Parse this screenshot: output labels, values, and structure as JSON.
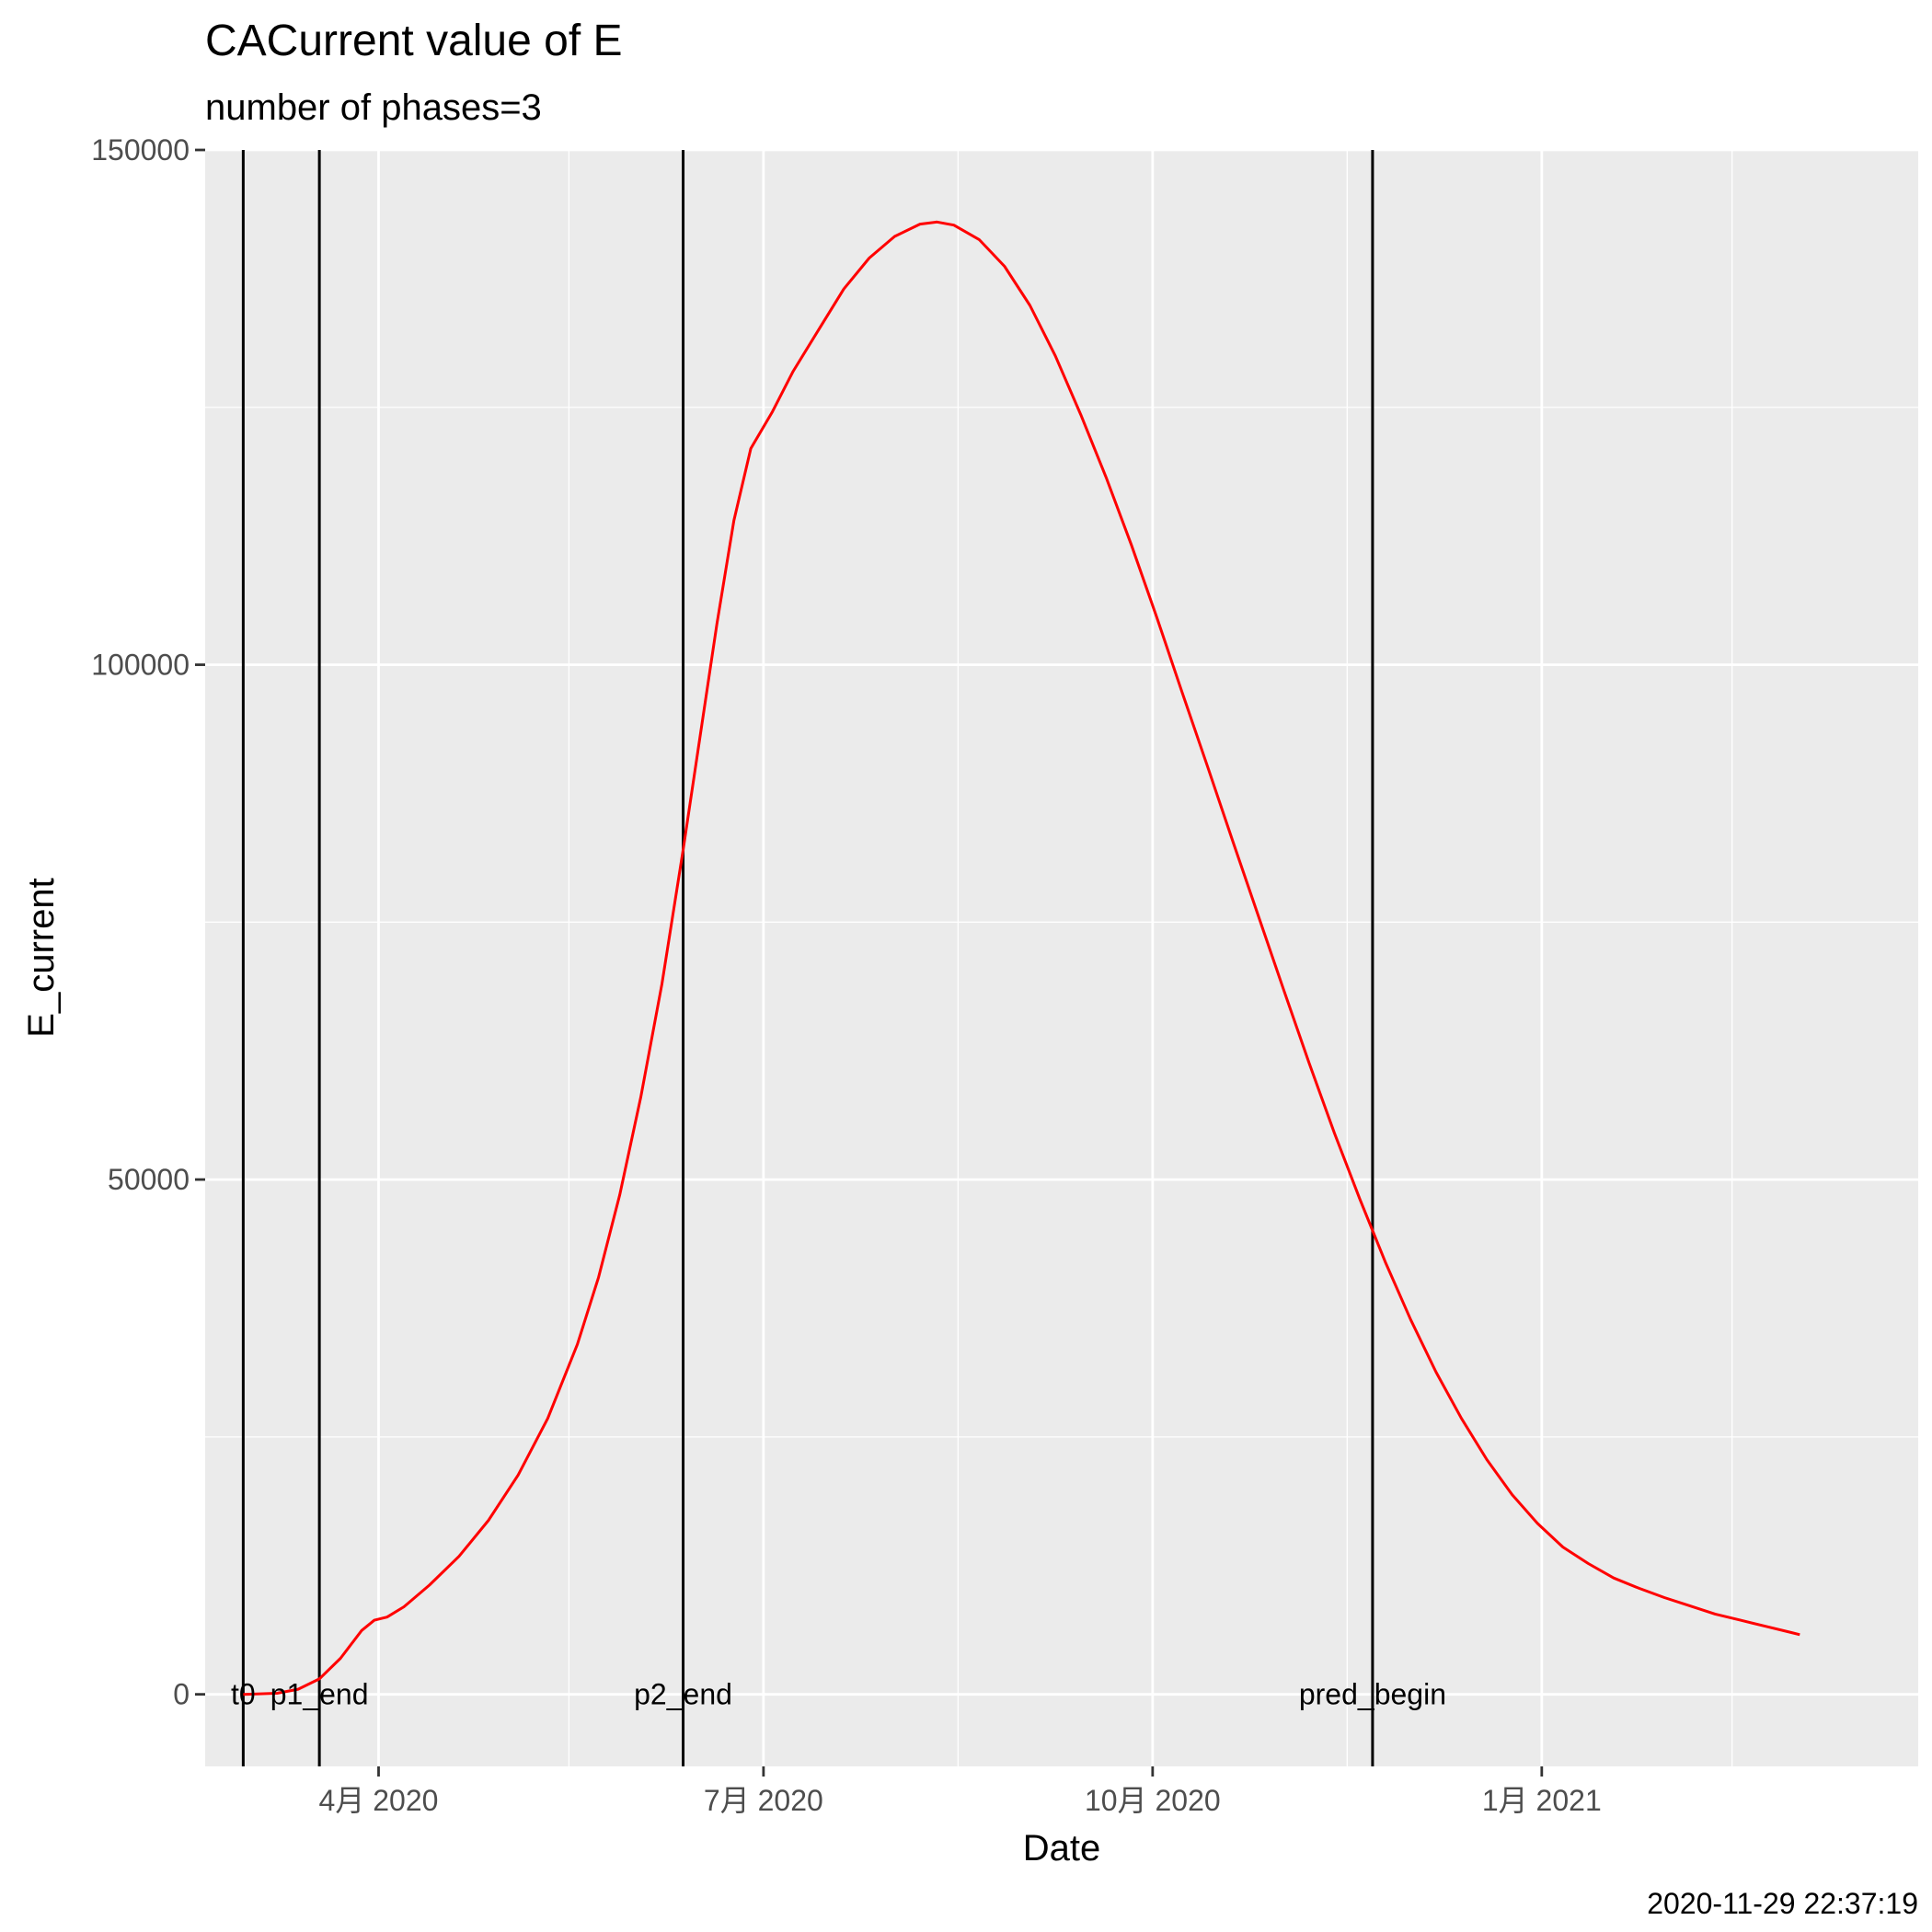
{
  "chart_data": {
    "type": "line",
    "title": "CACurrent value of E",
    "subtitle": "number of phases=3",
    "xlabel": "Date",
    "ylabel": "E_current",
    "caption": "2020-11-29 22:37:19",
    "xlim": [
      "2020-02-20",
      "2021-03-31"
    ],
    "ylim": [
      -7000,
      150000
    ],
    "x_ticks": [
      {
        "date": "2020-04-01",
        "label": "4月 2020"
      },
      {
        "date": "2020-07-01",
        "label": "7月 2020"
      },
      {
        "date": "2020-10-01",
        "label": "10月 2020"
      },
      {
        "date": "2021-01-01",
        "label": "1月 2021"
      }
    ],
    "x_minor_ticks": [
      "2020-02-15",
      "2020-05-16",
      "2020-08-16",
      "2020-11-16",
      "2021-02-15"
    ],
    "y_ticks": [
      0,
      50000,
      100000,
      150000
    ],
    "y_tick_labels": [
      "0",
      "50000",
      "100000",
      "150000"
    ],
    "grid": true,
    "panel_background": "#ebebeb",
    "series": [
      {
        "color": "#ff0000",
        "points": [
          [
            "2020-02-29",
            0
          ],
          [
            "2020-03-08",
            100
          ],
          [
            "2020-03-13",
            500
          ],
          [
            "2020-03-18",
            1500
          ],
          [
            "2020-03-23",
            3500
          ],
          [
            "2020-03-28",
            6200
          ],
          [
            "2020-03-31",
            7200
          ],
          [
            "2020-04-03",
            7500
          ],
          [
            "2020-04-07",
            8500
          ],
          [
            "2020-04-13",
            10600
          ],
          [
            "2020-04-20",
            13400
          ],
          [
            "2020-04-27",
            16900
          ],
          [
            "2020-05-04",
            21300
          ],
          [
            "2020-05-11",
            26800
          ],
          [
            "2020-05-18",
            34000
          ],
          [
            "2020-05-23",
            40500
          ],
          [
            "2020-05-28",
            48500
          ],
          [
            "2020-06-02",
            58000
          ],
          [
            "2020-06-07",
            69000
          ],
          [
            "2020-06-12",
            82000
          ],
          [
            "2020-06-16",
            93000
          ],
          [
            "2020-06-20",
            104000
          ],
          [
            "2020-06-24",
            114000
          ],
          [
            "2020-06-28",
            121000
          ],
          [
            "2020-07-03",
            124500
          ],
          [
            "2020-07-08",
            128500
          ],
          [
            "2020-07-14",
            132500
          ],
          [
            "2020-07-20",
            136500
          ],
          [
            "2020-07-26",
            139500
          ],
          [
            "2020-08-01",
            141600
          ],
          [
            "2020-08-07",
            142800
          ],
          [
            "2020-08-11",
            143000
          ],
          [
            "2020-08-15",
            142700
          ],
          [
            "2020-08-21",
            141300
          ],
          [
            "2020-08-27",
            138700
          ],
          [
            "2020-09-02",
            134900
          ],
          [
            "2020-09-08",
            130000
          ],
          [
            "2020-09-14",
            124300
          ],
          [
            "2020-09-20",
            118200
          ],
          [
            "2020-09-26",
            111600
          ],
          [
            "2020-10-02",
            104600
          ],
          [
            "2020-10-08",
            97300
          ],
          [
            "2020-10-14",
            90100
          ],
          [
            "2020-10-20",
            82800
          ],
          [
            "2020-10-26",
            75600
          ],
          [
            "2020-11-01",
            68400
          ],
          [
            "2020-11-07",
            61300
          ],
          [
            "2020-11-13",
            54500
          ],
          [
            "2020-11-19",
            48100
          ],
          [
            "2020-11-25",
            42000
          ],
          [
            "2020-12-01",
            36400
          ],
          [
            "2020-12-07",
            31300
          ],
          [
            "2020-12-13",
            26800
          ],
          [
            "2020-12-19",
            22800
          ],
          [
            "2020-12-25",
            19400
          ],
          [
            "2020-12-31",
            16600
          ],
          [
            "2021-01-06",
            14300
          ],
          [
            "2021-01-12",
            12700
          ],
          [
            "2021-01-18",
            11300
          ],
          [
            "2021-01-24",
            10300
          ],
          [
            "2021-01-30",
            9400
          ],
          [
            "2021-02-05",
            8600
          ],
          [
            "2021-02-11",
            7800
          ],
          [
            "2021-02-17",
            7200
          ],
          [
            "2021-02-23",
            6600
          ],
          [
            "2021-03-01",
            6000
          ],
          [
            "2021-03-03",
            5800
          ]
        ]
      }
    ],
    "vlines": [
      {
        "date": "2020-02-29",
        "label": "t0"
      },
      {
        "date": "2020-03-18",
        "label": "p1_end"
      },
      {
        "date": "2020-06-12",
        "label": "p2_end"
      },
      {
        "date": "2020-11-22",
        "label": "pred_begin"
      }
    ],
    "vline_color": "#000000"
  }
}
